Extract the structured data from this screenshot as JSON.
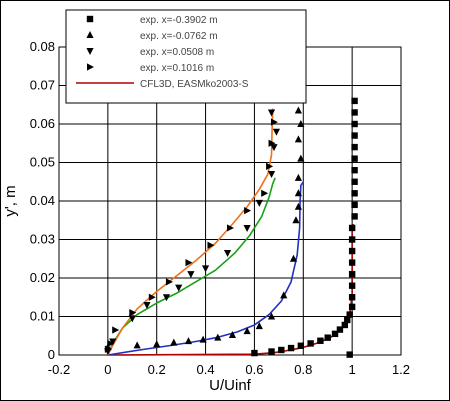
{
  "chart_data": {
    "type": "line",
    "title": "",
    "xlabel": "U/Uinf",
    "ylabel": "y', m",
    "xlim": [
      -0.2,
      1.2
    ],
    "ylim": [
      0,
      0.08
    ],
    "x_ticks": [
      -0.2,
      0,
      0.2,
      0.4,
      0.6,
      0.8,
      1,
      1.2
    ],
    "y_ticks": [
      0,
      0.01,
      0.02,
      0.03,
      0.04,
      0.05,
      0.06,
      0.07,
      0.08
    ],
    "x_tick_labels": [
      "-0.2",
      "0",
      "0.2",
      "0.4",
      "0.6",
      "0.8",
      "1",
      "1.2"
    ],
    "y_tick_labels": [
      "0",
      "0.01",
      "0.02",
      "0.03",
      "0.04",
      "0.05",
      "0.06",
      "0.07",
      "0.08"
    ],
    "grid": true,
    "legend_position": "top",
    "legend": [
      {
        "label": "exp. x=-0.3902 m",
        "marker": "square"
      },
      {
        "label": "exp. x=-0.0762 m",
        "marker": "triangle-up"
      },
      {
        "label": "exp. x=0.0508 m",
        "marker": "triangle-down"
      },
      {
        "label": "exp. x=0.1016 m",
        "marker": "triangle-right"
      },
      {
        "label": "CFL3D, EASMko2003-S",
        "marker": "line"
      }
    ],
    "colors": {
      "markers": "#000000",
      "cfd_x1": "#b00000",
      "cfd_x2": "#2030c0",
      "cfd_x3": "#18a018",
      "cfd_x4": "#f07018"
    },
    "experimental": [
      {
        "marker": "square",
        "points": [
          [
            0.99,
            0.0001
          ],
          [
            0.6,
            0.0005
          ],
          [
            0.67,
            0.0009
          ],
          [
            0.71,
            0.0013
          ],
          [
            0.75,
            0.0018
          ],
          [
            0.79,
            0.0024
          ],
          [
            0.83,
            0.003
          ],
          [
            0.87,
            0.0037
          ],
          [
            0.9,
            0.0045
          ],
          [
            0.93,
            0.0055
          ],
          [
            0.95,
            0.0066
          ],
          [
            0.97,
            0.0078
          ],
          [
            0.98,
            0.0091
          ],
          [
            0.99,
            0.0105
          ],
          [
            1.0,
            0.0125
          ],
          [
            1.0,
            0.015
          ],
          [
            1.0,
            0.018
          ],
          [
            1.0,
            0.021
          ],
          [
            1.0,
            0.024
          ],
          [
            1.0,
            0.027
          ],
          [
            1.0,
            0.03
          ],
          [
            1.0,
            0.033
          ],
          [
            1.01,
            0.036
          ],
          [
            1.01,
            0.039
          ],
          [
            1.01,
            0.042
          ],
          [
            1.01,
            0.045
          ],
          [
            1.01,
            0.048
          ],
          [
            1.01,
            0.051
          ],
          [
            1.01,
            0.054
          ],
          [
            1.01,
            0.057
          ],
          [
            1.01,
            0.06
          ],
          [
            1.01,
            0.063
          ],
          [
            1.01,
            0.066
          ]
        ]
      },
      {
        "marker": "triangle-up",
        "points": [
          [
            0.0,
            0.002
          ],
          [
            0.12,
            0.0025
          ],
          [
            0.2,
            0.0028
          ],
          [
            0.27,
            0.0032
          ],
          [
            0.33,
            0.0036
          ],
          [
            0.39,
            0.004
          ],
          [
            0.45,
            0.0045
          ],
          [
            0.51,
            0.0052
          ],
          [
            0.57,
            0.0062
          ],
          [
            0.62,
            0.0075
          ],
          [
            0.67,
            0.01
          ],
          [
            0.72,
            0.0155
          ],
          [
            0.76,
            0.025
          ],
          [
            0.77,
            0.035
          ],
          [
            0.78,
            0.0385
          ],
          [
            0.78,
            0.042
          ],
          [
            0.78,
            0.046
          ],
          [
            0.79,
            0.051
          ],
          [
            0.78,
            0.056
          ],
          [
            0.79,
            0.06
          ],
          [
            0.78,
            0.0635
          ],
          [
            0.77,
            0.0665
          ]
        ]
      },
      {
        "marker": "triangle-down",
        "points": [
          [
            0.0,
            0.001
          ],
          [
            0.02,
            0.0035
          ],
          [
            0.1,
            0.0095
          ],
          [
            0.16,
            0.013
          ],
          [
            0.24,
            0.015
          ],
          [
            0.29,
            0.0175
          ],
          [
            0.34,
            0.021
          ],
          [
            0.4,
            0.0225
          ],
          [
            0.49,
            0.0265
          ],
          [
            0.57,
            0.033
          ],
          [
            0.62,
            0.0395
          ],
          [
            0.67,
            0.047
          ],
          [
            0.68,
            0.054
          ],
          [
            0.69,
            0.058
          ],
          [
            0.67,
            0.063
          ]
        ]
      },
      {
        "marker": "triangle-right",
        "points": [
          [
            0.0,
            0.0015
          ],
          [
            0.01,
            0.003
          ],
          [
            0.03,
            0.0065
          ],
          [
            0.1,
            0.011
          ],
          [
            0.18,
            0.015
          ],
          [
            0.25,
            0.019
          ],
          [
            0.33,
            0.024
          ],
          [
            0.42,
            0.0285
          ],
          [
            0.5,
            0.033
          ],
          [
            0.57,
            0.0375
          ],
          [
            0.64,
            0.042
          ],
          [
            0.66,
            0.049
          ],
          [
            0.67,
            0.055
          ],
          [
            0.68,
            0.0605
          ]
        ]
      }
    ],
    "cfd": [
      {
        "color_key": "cfd_x1",
        "points": [
          [
            0.0,
            0.0
          ],
          [
            0.6,
            0.0002
          ],
          [
            0.68,
            0.0006
          ],
          [
            0.73,
            0.0011
          ],
          [
            0.78,
            0.0017
          ],
          [
            0.83,
            0.0025
          ],
          [
            0.87,
            0.0034
          ],
          [
            0.91,
            0.0045
          ],
          [
            0.94,
            0.0058
          ],
          [
            0.96,
            0.0072
          ],
          [
            0.98,
            0.0088
          ],
          [
            0.99,
            0.0105
          ],
          [
            0.995,
            0.013
          ],
          [
            1.0,
            0.016
          ],
          [
            1.0,
            0.02
          ],
          [
            1.0,
            0.026
          ],
          [
            1.0,
            0.032
          ],
          [
            1.005,
            0.034
          ]
        ]
      },
      {
        "color_key": "cfd_x2",
        "points": [
          [
            0.0,
            0.0
          ],
          [
            0.15,
            0.0015
          ],
          [
            0.26,
            0.0025
          ],
          [
            0.36,
            0.0035
          ],
          [
            0.45,
            0.0046
          ],
          [
            0.53,
            0.006
          ],
          [
            0.6,
            0.0078
          ],
          [
            0.66,
            0.0105
          ],
          [
            0.71,
            0.014
          ],
          [
            0.75,
            0.019
          ],
          [
            0.775,
            0.026
          ],
          [
            0.785,
            0.033
          ],
          [
            0.787,
            0.04
          ],
          [
            0.79,
            0.044
          ],
          [
            0.8,
            0.045
          ]
        ]
      },
      {
        "color_key": "cfd_x3",
        "points": [
          [
            0.0,
            0.0
          ],
          [
            0.02,
            0.003
          ],
          [
            0.06,
            0.007
          ],
          [
            0.12,
            0.0105
          ],
          [
            0.2,
            0.0135
          ],
          [
            0.28,
            0.016
          ],
          [
            0.36,
            0.019
          ],
          [
            0.44,
            0.022
          ],
          [
            0.52,
            0.0265
          ],
          [
            0.58,
            0.031
          ],
          [
            0.63,
            0.036
          ],
          [
            0.66,
            0.041
          ],
          [
            0.675,
            0.0445
          ],
          [
            0.685,
            0.046
          ]
        ]
      },
      {
        "color_key": "cfd_x4",
        "points": [
          [
            0.0,
            0.0
          ],
          [
            0.02,
            0.0025
          ],
          [
            0.06,
            0.007
          ],
          [
            0.12,
            0.012
          ],
          [
            0.2,
            0.0165
          ],
          [
            0.28,
            0.0205
          ],
          [
            0.36,
            0.0245
          ],
          [
            0.44,
            0.029
          ],
          [
            0.51,
            0.034
          ],
          [
            0.57,
            0.0385
          ],
          [
            0.62,
            0.043
          ],
          [
            0.655,
            0.047
          ],
          [
            0.67,
            0.052
          ],
          [
            0.672,
            0.058
          ],
          [
            0.675,
            0.064
          ]
        ]
      }
    ]
  }
}
